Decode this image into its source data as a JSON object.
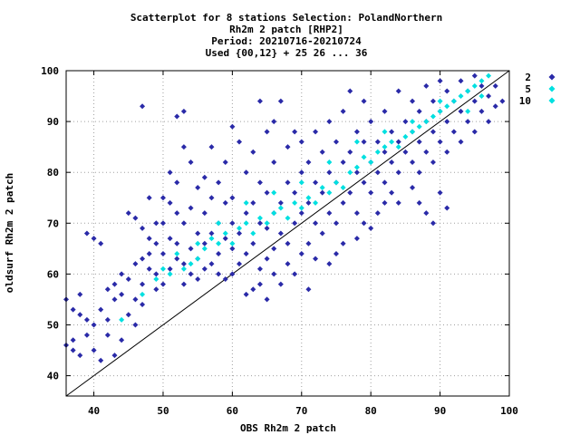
{
  "chart_data": {
    "type": "scatter",
    "title_lines": [
      "Scatterplot for    8 stations Selection: PolandNorthern",
      "Rh2m 2 patch [RHP2]",
      "Period: 20210716-20210724",
      "Used {00,12} + 25 26 ... 36"
    ],
    "xlabel": "OBS Rh2m 2 patch",
    "ylabel": "oldsurf Rh2m 2 patch",
    "xlim": [
      36,
      100
    ],
    "ylim": [
      36,
      100
    ],
    "xticks": [
      40,
      50,
      60,
      70,
      80,
      90,
      100
    ],
    "yticks": [
      40,
      50,
      60,
      70,
      80,
      90,
      100
    ],
    "grid": true,
    "diagonal_reference_line": true,
    "legend_position": "right",
    "series": [
      {
        "name": "2",
        "color": "#2a2aa8",
        "marker": "diamond",
        "points": [
          [
            36,
            46
          ],
          [
            37,
            45
          ],
          [
            37,
            47
          ],
          [
            38,
            44
          ],
          [
            39,
            48
          ],
          [
            40,
            45
          ],
          [
            41,
            43
          ],
          [
            42,
            48
          ],
          [
            43,
            44
          ],
          [
            44,
            47
          ],
          [
            38,
            52
          ],
          [
            39,
            51
          ],
          [
            40,
            50
          ],
          [
            41,
            53
          ],
          [
            42,
            51
          ],
          [
            43,
            55
          ],
          [
            44,
            56
          ],
          [
            45,
            52
          ],
          [
            46,
            50
          ],
          [
            47,
            54
          ],
          [
            36,
            55
          ],
          [
            37,
            53
          ],
          [
            38,
            56
          ],
          [
            39,
            68
          ],
          [
            40,
            67
          ],
          [
            41,
            66
          ],
          [
            42,
            57
          ],
          [
            43,
            58
          ],
          [
            44,
            60
          ],
          [
            45,
            59
          ],
          [
            46,
            62
          ],
          [
            46,
            55
          ],
          [
            47,
            63
          ],
          [
            47,
            58
          ],
          [
            48,
            61
          ],
          [
            48,
            64
          ],
          [
            49,
            66
          ],
          [
            49,
            60
          ],
          [
            50,
            58
          ],
          [
            50,
            64
          ],
          [
            45,
            72
          ],
          [
            46,
            71
          ],
          [
            47,
            69
          ],
          [
            47,
            93
          ],
          [
            48,
            67
          ],
          [
            48,
            75
          ],
          [
            49,
            70
          ],
          [
            49,
            57
          ],
          [
            50,
            75
          ],
          [
            50,
            70
          ],
          [
            51,
            61
          ],
          [
            51,
            67
          ],
          [
            52,
            63
          ],
          [
            52,
            66
          ],
          [
            53,
            58
          ],
          [
            53,
            62
          ],
          [
            54,
            60
          ],
          [
            54,
            65
          ],
          [
            55,
            59
          ],
          [
            55,
            63
          ],
          [
            51,
            74
          ],
          [
            51,
            80
          ],
          [
            52,
            72
          ],
          [
            52,
            78
          ],
          [
            53,
            85
          ],
          [
            53,
            70
          ],
          [
            54,
            73
          ],
          [
            54,
            82
          ],
          [
            55,
            68
          ],
          [
            55,
            77
          ],
          [
            52,
            91
          ],
          [
            53,
            92
          ],
          [
            56,
            61
          ],
          [
            56,
            66
          ],
          [
            57,
            62
          ],
          [
            57,
            68
          ],
          [
            58,
            60
          ],
          [
            58,
            64
          ],
          [
            59,
            59
          ],
          [
            59,
            67
          ],
          [
            56,
            72
          ],
          [
            56,
            79
          ],
          [
            57,
            75
          ],
          [
            57,
            85
          ],
          [
            58,
            70
          ],
          [
            58,
            78
          ],
          [
            59,
            74
          ],
          [
            59,
            82
          ],
          [
            60,
            60
          ],
          [
            60,
            65
          ],
          [
            60,
            70
          ],
          [
            60,
            75
          ],
          [
            61,
            62
          ],
          [
            61,
            68
          ],
          [
            62,
            64
          ],
          [
            62,
            72
          ],
          [
            63,
            66
          ],
          [
            63,
            74
          ],
          [
            64,
            61
          ],
          [
            64,
            70
          ],
          [
            60,
            89
          ],
          [
            61,
            86
          ],
          [
            62,
            80
          ],
          [
            63,
            84
          ],
          [
            64,
            78
          ],
          [
            65,
            63
          ],
          [
            65,
            69
          ],
          [
            65,
            76
          ],
          [
            66,
            65
          ],
          [
            66,
            72
          ],
          [
            66,
            82
          ],
          [
            67,
            68
          ],
          [
            67,
            74
          ],
          [
            67,
            94
          ],
          [
            68,
            66
          ],
          [
            68,
            78
          ],
          [
            69,
            70
          ],
          [
            69,
            76
          ],
          [
            70,
            64
          ],
          [
            70,
            72
          ],
          [
            64,
            94
          ],
          [
            65,
            88
          ],
          [
            66,
            90
          ],
          [
            68,
            85
          ],
          [
            69,
            88
          ],
          [
            70,
            80
          ],
          [
            70,
            86
          ],
          [
            71,
            66
          ],
          [
            71,
            74
          ],
          [
            71,
            82
          ],
          [
            72,
            70
          ],
          [
            72,
            78
          ],
          [
            72,
            88
          ],
          [
            73,
            68
          ],
          [
            73,
            76
          ],
          [
            73,
            84
          ],
          [
            74,
            72
          ],
          [
            74,
            80
          ],
          [
            74,
            90
          ],
          [
            75,
            70
          ],
          [
            75,
            78
          ],
          [
            75,
            86
          ],
          [
            76,
            74
          ],
          [
            76,
            82
          ],
          [
            76,
            92
          ],
          [
            77,
            76
          ],
          [
            77,
            84
          ],
          [
            77,
            96
          ],
          [
            78,
            72
          ],
          [
            78,
            80
          ],
          [
            78,
            88
          ],
          [
            79,
            78
          ],
          [
            79,
            86
          ],
          [
            79,
            94
          ],
          [
            80,
            76
          ],
          [
            80,
            82
          ],
          [
            80,
            90
          ],
          [
            81,
            80
          ],
          [
            81,
            86
          ],
          [
            82,
            78
          ],
          [
            82,
            84
          ],
          [
            82,
            92
          ],
          [
            83,
            82
          ],
          [
            83,
            88
          ],
          [
            84,
            80
          ],
          [
            84,
            86
          ],
          [
            84,
            96
          ],
          [
            85,
            84
          ],
          [
            85,
            90
          ],
          [
            86,
            82
          ],
          [
            86,
            88
          ],
          [
            86,
            94
          ],
          [
            87,
            80
          ],
          [
            87,
            86
          ],
          [
            87,
            92
          ],
          [
            88,
            84
          ],
          [
            88,
            90
          ],
          [
            88,
            97
          ],
          [
            89,
            82
          ],
          [
            89,
            88
          ],
          [
            89,
            94
          ],
          [
            90,
            86
          ],
          [
            90,
            92
          ],
          [
            90,
            98
          ],
          [
            91,
            84
          ],
          [
            91,
            90
          ],
          [
            91,
            96
          ],
          [
            92,
            88
          ],
          [
            92,
            94
          ],
          [
            93,
            86
          ],
          [
            93,
            92
          ],
          [
            93,
            98
          ],
          [
            94,
            90
          ],
          [
            94,
            96
          ],
          [
            95,
            88
          ],
          [
            95,
            94
          ],
          [
            95,
            99
          ],
          [
            96,
            92
          ],
          [
            96,
            97
          ],
          [
            97,
            90
          ],
          [
            97,
            95
          ],
          [
            98,
            93
          ],
          [
            98,
            97
          ],
          [
            99,
            94
          ],
          [
            86,
            77
          ],
          [
            87,
            74
          ],
          [
            88,
            72
          ],
          [
            89,
            70
          ],
          [
            90,
            76
          ],
          [
            91,
            73
          ],
          [
            62,
            56
          ],
          [
            63,
            57
          ],
          [
            64,
            58
          ],
          [
            65,
            55
          ],
          [
            66,
            60
          ],
          [
            67,
            58
          ],
          [
            68,
            62
          ],
          [
            69,
            60
          ],
          [
            71,
            57
          ],
          [
            72,
            63
          ],
          [
            74,
            62
          ],
          [
            75,
            64
          ],
          [
            76,
            66
          ],
          [
            78,
            67
          ],
          [
            79,
            70
          ],
          [
            80,
            69
          ],
          [
            81,
            72
          ],
          [
            82,
            74
          ],
          [
            83,
            76
          ],
          [
            84,
            74
          ]
        ]
      },
      {
        "name": "5",
        "color": "#00e0e0",
        "marker": "diamond",
        "points": [
          [
            44,
            51
          ],
          [
            47,
            56
          ],
          [
            49,
            59
          ],
          [
            50,
            61
          ],
          [
            52,
            64
          ],
          [
            53,
            61
          ],
          [
            54,
            62
          ],
          [
            55,
            63
          ],
          [
            56,
            65
          ],
          [
            57,
            67
          ],
          [
            58,
            66
          ],
          [
            59,
            68
          ],
          [
            60,
            66
          ],
          [
            61,
            69
          ],
          [
            62,
            70
          ],
          [
            63,
            68
          ],
          [
            64,
            71
          ],
          [
            65,
            70
          ],
          [
            66,
            72
          ],
          [
            67,
            73
          ],
          [
            68,
            71
          ],
          [
            69,
            74
          ],
          [
            70,
            73
          ],
          [
            71,
            75
          ],
          [
            72,
            74
          ],
          [
            73,
            77
          ],
          [
            74,
            76
          ],
          [
            75,
            78
          ],
          [
            76,
            77
          ],
          [
            77,
            80
          ],
          [
            78,
            81
          ],
          [
            79,
            83
          ],
          [
            80,
            82
          ],
          [
            81,
            84
          ],
          [
            82,
            85
          ],
          [
            83,
            86
          ],
          [
            84,
            85
          ],
          [
            85,
            87
          ],
          [
            86,
            88
          ],
          [
            87,
            89
          ],
          [
            88,
            90
          ],
          [
            89,
            91
          ],
          [
            90,
            92
          ],
          [
            91,
            93
          ],
          [
            92,
            94
          ],
          [
            93,
            95
          ],
          [
            94,
            96
          ],
          [
            95,
            97
          ],
          [
            96,
            98
          ],
          [
            97,
            99
          ]
        ]
      },
      {
        "name": "10",
        "color": "#00e0e0",
        "marker": "diamond",
        "points": [
          [
            51,
            60
          ],
          [
            55,
            66
          ],
          [
            58,
            70
          ],
          [
            62,
            74
          ],
          [
            66,
            76
          ],
          [
            70,
            78
          ],
          [
            74,
            82
          ],
          [
            78,
            86
          ],
          [
            82,
            88
          ],
          [
            86,
            90
          ],
          [
            90,
            94
          ],
          [
            94,
            92
          ],
          [
            96,
            95
          ]
        ]
      }
    ]
  }
}
